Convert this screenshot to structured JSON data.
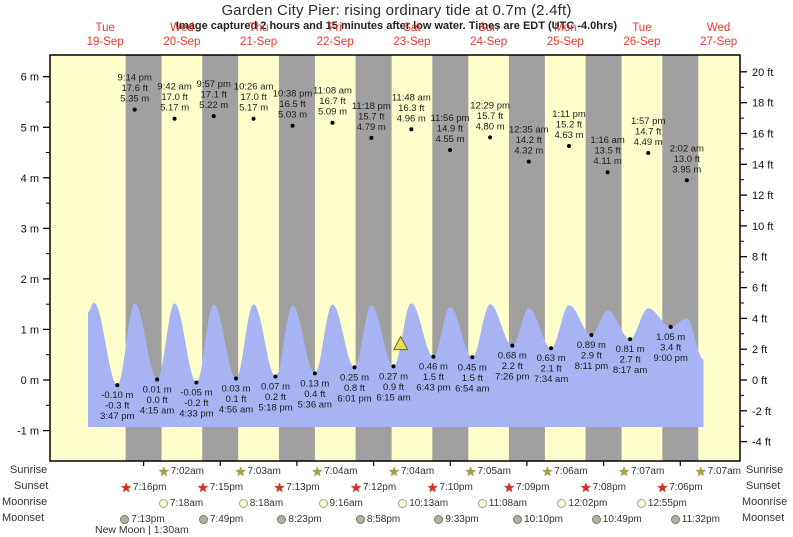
{
  "header": {
    "title": "Garden City Pier: rising  ordinary tide at 0.7m (2.4ft)",
    "subtitle": "Image captured 2 hours and 15 minutes after low water. Times are EDT (UTC -4.0hrs)"
  },
  "colors": {
    "day_band": "#ffffcc",
    "night_band": "#a0a0a0",
    "tide_fill": "#a7b3f2",
    "day_label_red": "#e5392c",
    "annotation_text": "#1c1c1c",
    "axis_text": "#111111",
    "sunrise_star": "#a8a23a",
    "sunset_star": "#d63020",
    "moonrise_fill": "#ffffd6",
    "moonrise_border": "#a0a090",
    "moonset_fill": "#b3b3a3",
    "moonset_border": "#75756a",
    "marker_fill": "#e6e050",
    "marker_border": "#6a6a2a"
  },
  "chart_data": {
    "type": "area",
    "title": "Garden City Pier tide height forecast",
    "xlabel": "",
    "ylabel_left": "metres",
    "ylabel_right": "feet",
    "x_axis_days": [
      {
        "weekday": "Tue",
        "date": "19-Sep"
      },
      {
        "weekday": "Wed",
        "date": "20-Sep"
      },
      {
        "weekday": "Thu",
        "date": "21-Sep"
      },
      {
        "weekday": "Fri",
        "date": "22-Sep"
      },
      {
        "weekday": "Sat",
        "date": "23-Sep"
      },
      {
        "weekday": "Sun",
        "date": "24-Sep"
      },
      {
        "weekday": "Mon",
        "date": "25-Sep"
      },
      {
        "weekday": "Tue",
        "date": "26-Sep"
      },
      {
        "weekday": "Wed",
        "date": "27-Sep"
      }
    ],
    "y_axis_left": {
      "unit": "m",
      "tick_values": [
        6,
        5,
        4,
        3,
        2,
        1,
        0,
        -1
      ],
      "tick_labels": [
        "6 m",
        "5 m",
        "4 m",
        "3 m",
        "2 m",
        "1 m",
        "0 m",
        "-1 m"
      ]
    },
    "y_axis_right": {
      "unit": "ft",
      "tick_values": [
        20,
        18,
        16,
        14,
        12,
        10,
        8,
        6,
        4,
        2,
        0,
        -2,
        -4
      ],
      "tick_labels": [
        "20 ft",
        "18 ft",
        "16 ft",
        "14 ft",
        "12 ft",
        "10 ft",
        "8 ft",
        "6 ft",
        "4 ft",
        "2 ft",
        "0 ft",
        "-2 ft",
        "-4 ft"
      ]
    },
    "high_tides": [
      {
        "day": 0,
        "time": "9:14 pm",
        "height_ft": "17.6 ft",
        "height_m": "5.35 m",
        "m": 5.35
      },
      {
        "day": 1,
        "time": "9:42 am",
        "height_ft": "17.0 ft",
        "height_m": "5.17 m",
        "m": 5.17
      },
      {
        "day": 1,
        "time": "9:57 pm",
        "height_ft": "17.1 ft",
        "height_m": "5.22 m",
        "m": 5.22
      },
      {
        "day": 2,
        "time": "10:26 am",
        "height_ft": "17.0 ft",
        "height_m": "5.17 m",
        "m": 5.17
      },
      {
        "day": 2,
        "time": "10:38 pm",
        "height_ft": "16.5 ft",
        "height_m": "5.03 m",
        "m": 5.03
      },
      {
        "day": 3,
        "time": "11:08 am",
        "height_ft": "16.7 ft",
        "height_m": "5.09 m",
        "m": 5.09
      },
      {
        "day": 3,
        "time": "11:18 pm",
        "height_ft": "15.7 ft",
        "height_m": "4.79 m",
        "m": 4.79
      },
      {
        "day": 4,
        "time": "11:48 am",
        "height_ft": "16.3 ft",
        "height_m": "4.96 m",
        "m": 4.96
      },
      {
        "day": 4,
        "time": "11:56 pm",
        "height_ft": "14.9 ft",
        "height_m": "4.55 m",
        "m": 4.55
      },
      {
        "day": 5,
        "time": "12:29 pm",
        "height_ft": "15.7 ft",
        "height_m": "4.80 m",
        "m": 4.8
      },
      {
        "day": 6,
        "time": "12:35 am",
        "height_ft": "14.2 ft",
        "height_m": "4.32 m",
        "m": 4.32
      },
      {
        "day": 6,
        "time": "1:11 pm",
        "height_ft": "15.2 ft",
        "height_m": "4.63 m",
        "m": 4.63
      },
      {
        "day": 7,
        "time": "1:16 am",
        "height_ft": "13.5 ft",
        "height_m": "4.11 m",
        "m": 4.11
      },
      {
        "day": 7,
        "time": "1:57 pm",
        "height_ft": "14.7 ft",
        "height_m": "4.49 m",
        "m": 4.49
      },
      {
        "day": 8,
        "time": "2:02 am",
        "height_ft": "13.0 ft",
        "height_m": "3.95 m",
        "m": 3.95
      }
    ],
    "low_tides": [
      {
        "day": 0,
        "time": "3:47 pm",
        "height_m": "-0.10 m",
        "height_ft": "-0.3 ft",
        "m": -0.1
      },
      {
        "day": 1,
        "time": "4:15 am",
        "height_m": "0.01 m",
        "height_ft": "0.0 ft",
        "m": 0.01
      },
      {
        "day": 1,
        "time": "4:33 pm",
        "height_m": "-0.05 m",
        "height_ft": "-0.2 ft",
        "m": -0.05
      },
      {
        "day": 2,
        "time": "4:56 am",
        "height_m": "0.03 m",
        "height_ft": "0.1 ft",
        "m": 0.03
      },
      {
        "day": 2,
        "time": "5:18 pm",
        "height_m": "0.07 m",
        "height_ft": "0.2 ft",
        "m": 0.07
      },
      {
        "day": 3,
        "time": "5:36 am",
        "height_m": "0.13 m",
        "height_ft": "0.4 ft",
        "m": 0.13
      },
      {
        "day": 3,
        "time": "6:01 pm",
        "height_m": "0.25 m",
        "height_ft": "0.8 ft",
        "m": 0.25
      },
      {
        "day": 4,
        "time": "6:15 am",
        "height_m": "0.27 m",
        "height_ft": "0.9 ft",
        "m": 0.27
      },
      {
        "day": 4,
        "time": "6:43 pm",
        "height_m": "0.46 m",
        "height_ft": "1.5 ft",
        "m": 0.46
      },
      {
        "day": 5,
        "time": "6:54 am",
        "height_m": "0.45 m",
        "height_ft": "1.5 ft",
        "m": 0.45
      },
      {
        "day": 5,
        "time": "7:26 pm",
        "height_m": "0.68 m",
        "height_ft": "2.2 ft",
        "m": 0.68
      },
      {
        "day": 6,
        "time": "7:34 am",
        "height_m": "0.63 m",
        "height_ft": "2.1 ft",
        "m": 0.63
      },
      {
        "day": 6,
        "time": "8:11 pm",
        "height_m": "0.89 m",
        "height_ft": "2.9 ft",
        "m": 0.89
      },
      {
        "day": 7,
        "time": "8:17 am",
        "height_m": "0.81 m",
        "height_ft": "2.7 ft",
        "m": 0.81
      },
      {
        "day": 7,
        "time": "9:00 pm",
        "height_m": "1.05 m",
        "height_ft": "3.4 ft",
        "m": 1.05
      }
    ],
    "current_tide_marker": {
      "height_m": 0.7,
      "height_ft": 2.4,
      "t_hours": 104.5
    },
    "curve_display": {
      "left_edge": {
        "t_hours": 6.6,
        "m": 1.35
      },
      "first_peak": {
        "t_hours": 8.5,
        "m": 1.53
      },
      "peak_heights_m": [
        1.52,
        1.52,
        1.5,
        1.5,
        1.48,
        1.5,
        1.48,
        1.52,
        1.45,
        1.5,
        1.42,
        1.48,
        1.38,
        1.42,
        1.22
      ],
      "right_edge": {
        "t_hours": 199.3,
        "m": 0.4
      },
      "base_m": -0.92
    }
  },
  "astro": {
    "rows": [
      {
        "id": "sunrise",
        "label": "Sunrise",
        "icon": "sunrise-star-icon",
        "entries": [
          {
            "day": 1,
            "time": "7:02am"
          },
          {
            "day": 2,
            "time": "7:03am"
          },
          {
            "day": 3,
            "time": "7:04am"
          },
          {
            "day": 4,
            "time": "7:04am"
          },
          {
            "day": 5,
            "time": "7:05am"
          },
          {
            "day": 6,
            "time": "7:06am"
          },
          {
            "day": 7,
            "time": "7:07am"
          },
          {
            "day": 8,
            "time": "7:07am"
          }
        ]
      },
      {
        "id": "sunset",
        "label": "Sunset",
        "icon": "sunset-star-icon",
        "entries": [
          {
            "day": 0,
            "time": "7:16pm"
          },
          {
            "day": 1,
            "time": "7:15pm"
          },
          {
            "day": 2,
            "time": "7:13pm"
          },
          {
            "day": 3,
            "time": "7:12pm"
          },
          {
            "day": 4,
            "time": "7:10pm"
          },
          {
            "day": 5,
            "time": "7:09pm"
          },
          {
            "day": 6,
            "time": "7:08pm"
          },
          {
            "day": 7,
            "time": "7:06pm"
          }
        ]
      },
      {
        "id": "moonrise",
        "label": "Moonrise",
        "icon": "moonrise-circle-icon",
        "entries": [
          {
            "day": 1,
            "time": "7:18am"
          },
          {
            "day": 2,
            "time": "8:18am"
          },
          {
            "day": 3,
            "time": "9:16am"
          },
          {
            "day": 4,
            "time": "10:13am"
          },
          {
            "day": 5,
            "time": "11:08am"
          },
          {
            "day": 6,
            "time": "12:02pm"
          },
          {
            "day": 7,
            "time": "12:55pm"
          }
        ]
      },
      {
        "id": "moonset",
        "label": "Moonset",
        "icon": "moonset-circle-icon",
        "entries": [
          {
            "day": 0,
            "time": "7:13pm"
          },
          {
            "day": 1,
            "time": "7:49pm"
          },
          {
            "day": 2,
            "time": "8:23pm"
          },
          {
            "day": 3,
            "time": "8:58pm"
          },
          {
            "day": 4,
            "time": "9:33pm"
          },
          {
            "day": 5,
            "time": "10:10pm"
          },
          {
            "day": 6,
            "time": "10:49pm"
          },
          {
            "day": 7,
            "time": "11:32pm"
          }
        ]
      }
    ],
    "moon_phase_note": "New Moon | 1:30am"
  }
}
